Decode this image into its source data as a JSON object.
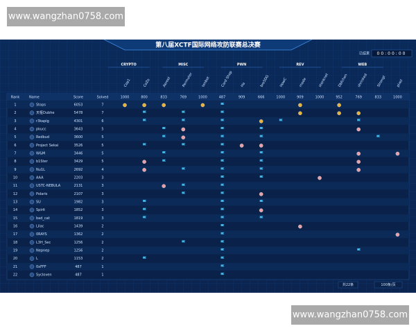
{
  "watermark_top": "www.wangzhan0758.com",
  "watermark_bottom": "www.wangzhan0758.com",
  "title": "第八届XCTF国际网络攻防联赛总决赛",
  "timer": {
    "label": "已结束",
    "value": "00:00:00"
  },
  "categories": [
    "CRYPTO",
    "MISC",
    "PWN",
    "REV",
    "WEB"
  ],
  "challenges": [
    {
      "name": "Cop1",
      "score": 1000
    },
    {
      "name": "CoZe",
      "score": 800
    },
    {
      "name": "Aeroel",
      "score": 833
    },
    {
      "name": "Permuter",
      "score": 769
    },
    {
      "name": "tenbot",
      "score": 1000
    },
    {
      "name": "Card Shop",
      "score": 487
    },
    {
      "name": "Ha",
      "score": 909
    },
    {
      "name": "bro5DG",
      "score": 666
    },
    {
      "name": "HowC",
      "score": 1000
    },
    {
      "name": "rnode",
      "score": 909
    },
    {
      "name": "stonknet",
      "score": 1000
    },
    {
      "name": "Dbfchen",
      "score": 952
    },
    {
      "name": "shrinked",
      "score": 769
    },
    {
      "name": "Strongl",
      "score": 833
    },
    {
      "name": "pixel",
      "score": 1000
    }
  ],
  "columns": {
    "rank": "Rank",
    "name": "Name",
    "score": "Score",
    "solved": "Solved"
  },
  "rows": [
    [
      1,
      "Stops",
      6053,
      7
    ],
    [
      2,
      "天枢Dubhe",
      5478,
      7
    ],
    [
      3,
      "r3kapig",
      4301,
      6
    ],
    [
      4,
      "pkucc",
      3643,
      5
    ],
    [
      5,
      "Redbud",
      3600,
      5
    ],
    [
      6,
      "Project Sekai",
      3526,
      5
    ],
    [
      7,
      "W&M",
      3446,
      5
    ],
    [
      8,
      "b1Ster",
      3429,
      5
    ],
    [
      9,
      "Nu1L",
      2692,
      4
    ],
    [
      10,
      "AAA",
      2203,
      3
    ],
    [
      11,
      "USTC-NEBULA",
      2131,
      3
    ],
    [
      12,
      "Polaris",
      2107,
      3
    ],
    [
      13,
      "SU",
      1982,
      3
    ],
    [
      14,
      "Spirit",
      1852,
      3
    ],
    [
      15,
      "bad_cat",
      1819,
      3
    ],
    [
      16,
      "Lilac",
      1439,
      2
    ],
    [
      17,
      "0RAYS",
      1362,
      2
    ],
    [
      18,
      "L3H_Sec",
      1256,
      2
    ],
    [
      19,
      "Nepnep",
      1256,
      2
    ],
    [
      20,
      "L",
      1153,
      2
    ],
    [
      21,
      "0xFFF",
      487,
      1
    ],
    [
      22,
      "Sycloven",
      487,
      1
    ]
  ],
  "footer": {
    "total": "共22条",
    "page_size": "100条/页"
  }
}
